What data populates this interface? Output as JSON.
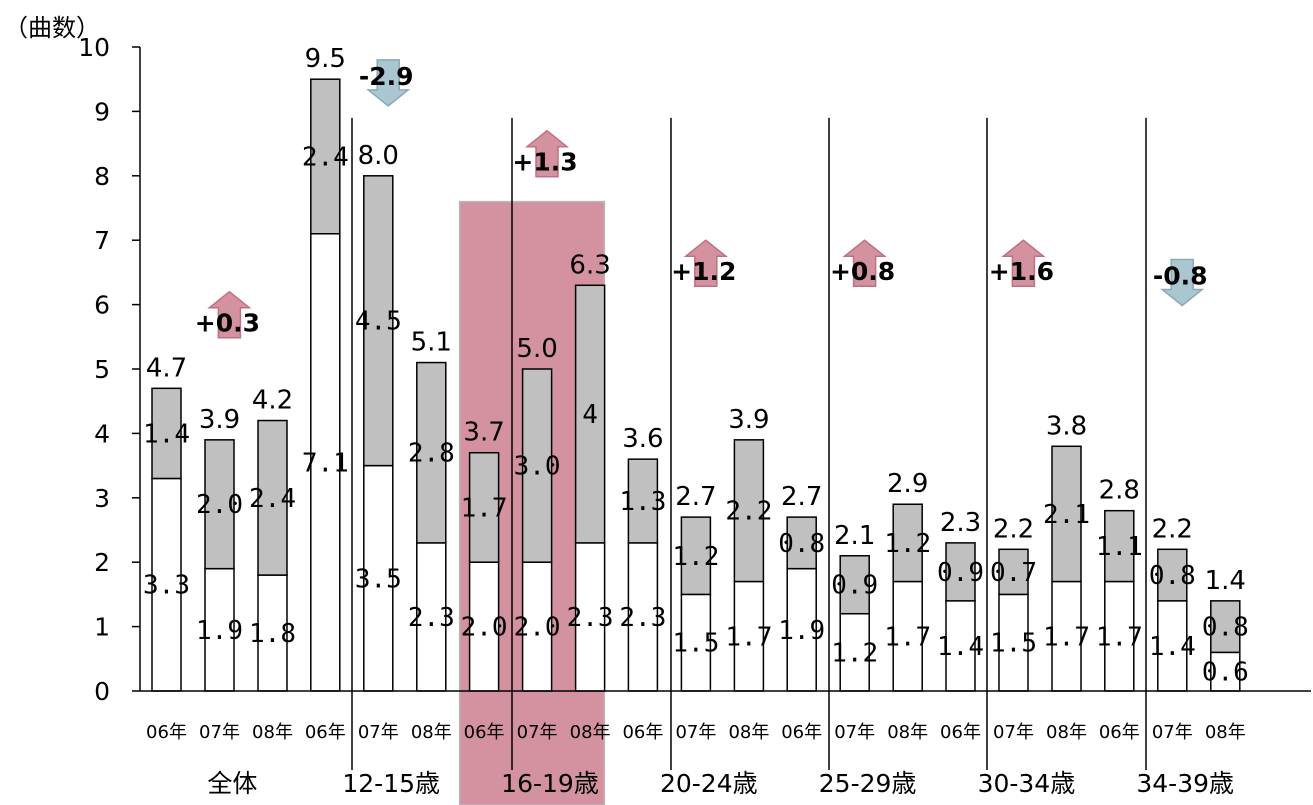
{
  "chart_data": {
    "type": "bar",
    "stacked": true,
    "ylabel": "（曲数）",
    "ylim": [
      0,
      10
    ],
    "yticks": [
      "0",
      "1",
      "2",
      "3",
      "4",
      "5",
      "6",
      "7",
      "8",
      "9",
      "10"
    ],
    "year_labels": [
      "06年",
      "07年",
      "08年"
    ],
    "highlight_group": "16-19歳",
    "colors": {
      "bottom_segment": "#ffffff",
      "top_segment": "#c0c0c0",
      "highlight_band": "#d4919f",
      "up_arrow": "#d4919f",
      "down_arrow": "#a9c6d1"
    },
    "groups": [
      {
        "name": "全体",
        "change": "+0.3",
        "direction": "up",
        "bars": [
          {
            "year": "06年",
            "bottom": 3.3,
            "top": 1.4,
            "total": 4.7,
            "bottom_label": "3.3",
            "top_label": "1.4",
            "total_label": "4.7"
          },
          {
            "year": "07年",
            "bottom": 1.9,
            "top": 2.0,
            "total": 3.9,
            "bottom_label": "1.9",
            "top_label": "2.0",
            "total_label": "3.9"
          },
          {
            "year": "08年",
            "bottom": 1.8,
            "top": 2.4,
            "total": 4.2,
            "bottom_label": "1.8",
            "top_label": "2.4",
            "total_label": "4.2"
          }
        ]
      },
      {
        "name": "12-15歳",
        "change": "-2.9",
        "direction": "down",
        "bars": [
          {
            "year": "06年",
            "bottom": 7.1,
            "top": 2.4,
            "total": 9.5,
            "bottom_label": "7.1",
            "top_label": "2.4",
            "total_label": "9.5"
          },
          {
            "year": "07年",
            "bottom": 3.5,
            "top": 4.5,
            "total": 8.0,
            "bottom_label": "3.5",
            "top_label": "4.5",
            "total_label": "8.0"
          },
          {
            "year": "08年",
            "bottom": 2.3,
            "top": 2.8,
            "total": 5.1,
            "bottom_label": "2.3",
            "top_label": "2.8",
            "total_label": "5.1"
          }
        ]
      },
      {
        "name": "16-19歳",
        "change": "+1.3",
        "direction": "up",
        "bars": [
          {
            "year": "06年",
            "bottom": 2.0,
            "top": 1.7,
            "total": 3.7,
            "bottom_label": "2.0",
            "top_label": "1.7",
            "total_label": "3.7"
          },
          {
            "year": "07年",
            "bottom": 2.0,
            "top": 3.0,
            "total": 5.0,
            "bottom_label": "2.0",
            "top_label": "3.0",
            "total_label": "5.0"
          },
          {
            "year": "08年",
            "bottom": 2.3,
            "top": 4.0,
            "total": 6.3,
            "bottom_label": "2.3",
            "top_label": "4",
            "total_label": "6.3"
          }
        ]
      },
      {
        "name": "20-24歳",
        "change": "+1.2",
        "direction": "up",
        "bars": [
          {
            "year": "06年",
            "bottom": 2.3,
            "top": 1.3,
            "total": 3.6,
            "bottom_label": "2.3",
            "top_label": "1.3",
            "total_label": "3.6"
          },
          {
            "year": "07年",
            "bottom": 1.5,
            "top": 1.2,
            "total": 2.7,
            "bottom_label": "1.5",
            "top_label": "1.2",
            "total_label": "2.7"
          },
          {
            "year": "08年",
            "bottom": 1.7,
            "top": 2.2,
            "total": 3.9,
            "bottom_label": "1.7",
            "top_label": "2.2",
            "total_label": "3.9"
          }
        ]
      },
      {
        "name": "25-29歳",
        "change": "+0.8",
        "direction": "up",
        "bars": [
          {
            "year": "06年",
            "bottom": 1.9,
            "top": 0.8,
            "total": 2.7,
            "bottom_label": "1.9",
            "top_label": "0.8",
            "total_label": "2.7"
          },
          {
            "year": "07年",
            "bottom": 1.2,
            "top": 0.9,
            "total": 2.1,
            "bottom_label": "1.2",
            "top_label": "0.9",
            "total_label": "2.1"
          },
          {
            "year": "08年",
            "bottom": 1.7,
            "top": 1.2,
            "total": 2.9,
            "bottom_label": "1.7",
            "top_label": "1.2",
            "total_label": "2.9"
          }
        ]
      },
      {
        "name": "30-34歳",
        "change": "+1.6",
        "direction": "up",
        "bars": [
          {
            "year": "06年",
            "bottom": 1.4,
            "top": 0.9,
            "total": 2.3,
            "bottom_label": "1.4",
            "top_label": "0.9",
            "total_label": "2.3"
          },
          {
            "year": "07年",
            "bottom": 1.5,
            "top": 0.7,
            "total": 2.2,
            "bottom_label": "1.5",
            "top_label": "0.7",
            "total_label": "2.2"
          },
          {
            "year": "08年",
            "bottom": 1.7,
            "top": 2.1,
            "total": 3.8,
            "bottom_label": "1.7",
            "top_label": "2.1",
            "total_label": "3.8"
          }
        ]
      },
      {
        "name": "34-39歳",
        "change": "-0.8",
        "direction": "down",
        "bars": [
          {
            "year": "06年",
            "bottom": 1.7,
            "top": 1.1,
            "total": 2.8,
            "bottom_label": "1.7",
            "top_label": "1.1",
            "total_label": "2.8"
          },
          {
            "year": "07年",
            "bottom": 1.4,
            "top": 0.8,
            "total": 2.2,
            "bottom_label": "1.4",
            "top_label": "0.8",
            "total_label": "2.2"
          },
          {
            "year": "08年",
            "bottom": 0.6,
            "top": 0.8,
            "total": 1.4,
            "bottom_label": "0.6",
            "top_label": "0.8",
            "total_label": "1.4"
          }
        ]
      }
    ]
  }
}
